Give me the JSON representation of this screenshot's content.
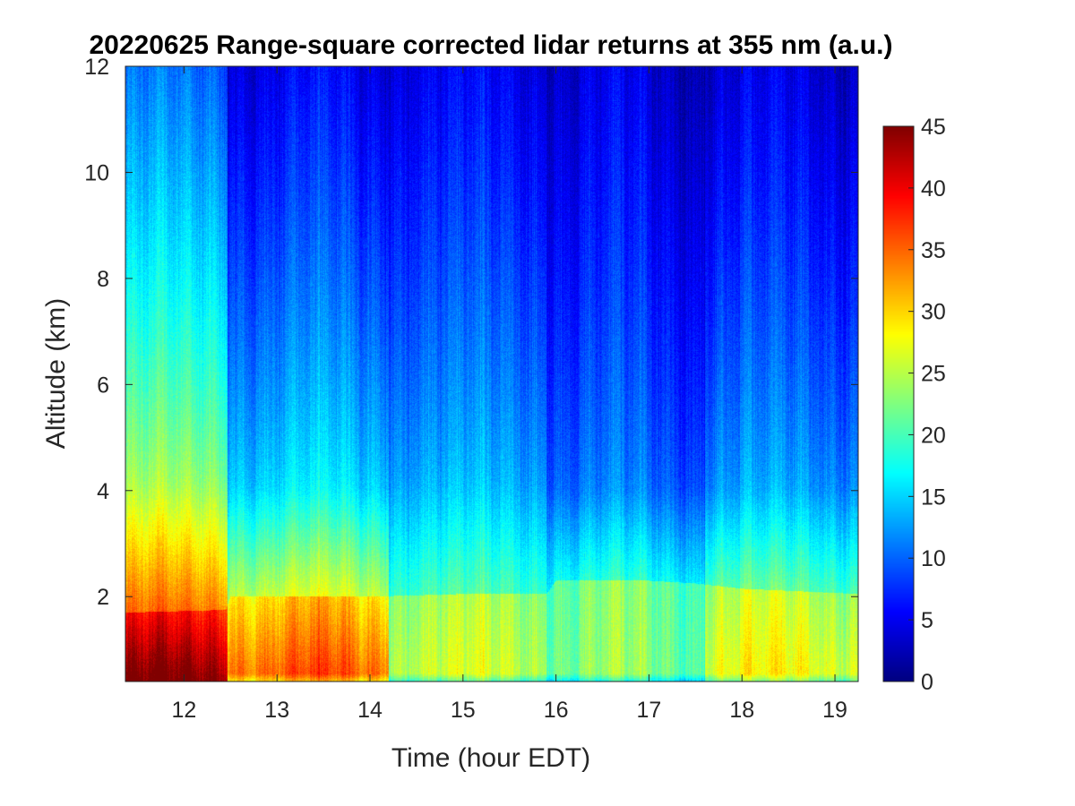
{
  "chart_data": {
    "type": "heatmap",
    "title": "20220625  Range-square corrected lidar returns at 355 nm (a.u.)",
    "xlabel": "Time (hour EDT)",
    "ylabel": "Altitude (km)",
    "xlim": [
      11.37,
      19.25
    ],
    "ylim": [
      0.4,
      12
    ],
    "x_ticks": [
      12,
      13,
      14,
      15,
      16,
      17,
      18,
      19
    ],
    "y_ticks": [
      2,
      4,
      6,
      8,
      10,
      12
    ],
    "colorbar": {
      "colormap": "jet",
      "clim": [
        0,
        45
      ],
      "ticks": [
        0,
        5,
        10,
        15,
        20,
        25,
        30,
        35,
        40,
        45
      ]
    },
    "field": {
      "description_units": "a.u.",
      "boundary_layer_top_km": [
        {
          "t": 11.4,
          "z": 1.7
        },
        {
          "t": 12.45,
          "z": 1.75
        },
        {
          "t": 12.5,
          "z": 2.0
        },
        {
          "t": 14.0,
          "z": 2.0
        },
        {
          "t": 15.0,
          "z": 2.05
        },
        {
          "t": 15.9,
          "z": 2.05
        },
        {
          "t": 16.0,
          "z": 2.3
        },
        {
          "t": 17.0,
          "z": 2.3
        },
        {
          "t": 17.5,
          "z": 2.25
        },
        {
          "t": 18.0,
          "z": 2.15
        },
        {
          "t": 19.25,
          "z": 2.05
        }
      ],
      "segments": [
        {
          "t0": 11.37,
          "t1": 12.47,
          "surface_value": 45,
          "layer_value": 38,
          "aloft_value_at_4km": 24,
          "aloft_value_at_12km": 10
        },
        {
          "t0": 12.47,
          "t1": 14.2,
          "surface_value": 36,
          "layer_value": 30,
          "aloft_value_at_4km": 16,
          "aloft_value_at_12km": 5
        },
        {
          "t0": 14.2,
          "t1": 15.9,
          "surface_value": 26,
          "layer_value": 24,
          "aloft_value_at_4km": 14,
          "aloft_value_at_12km": 5
        },
        {
          "t0": 15.9,
          "t1": 17.0,
          "surface_value": 23,
          "layer_value": 22,
          "aloft_value_at_4km": 11,
          "aloft_value_at_12km": 4
        },
        {
          "t0": 17.0,
          "t1": 17.6,
          "surface_value": 22,
          "layer_value": 21,
          "aloft_value_at_4km": 10,
          "aloft_value_at_12km": 3
        },
        {
          "t0": 17.6,
          "t1": 19.25,
          "surface_value": 28,
          "layer_value": 25,
          "aloft_value_at_4km": 13,
          "aloft_value_at_12km": 4
        }
      ]
    }
  }
}
